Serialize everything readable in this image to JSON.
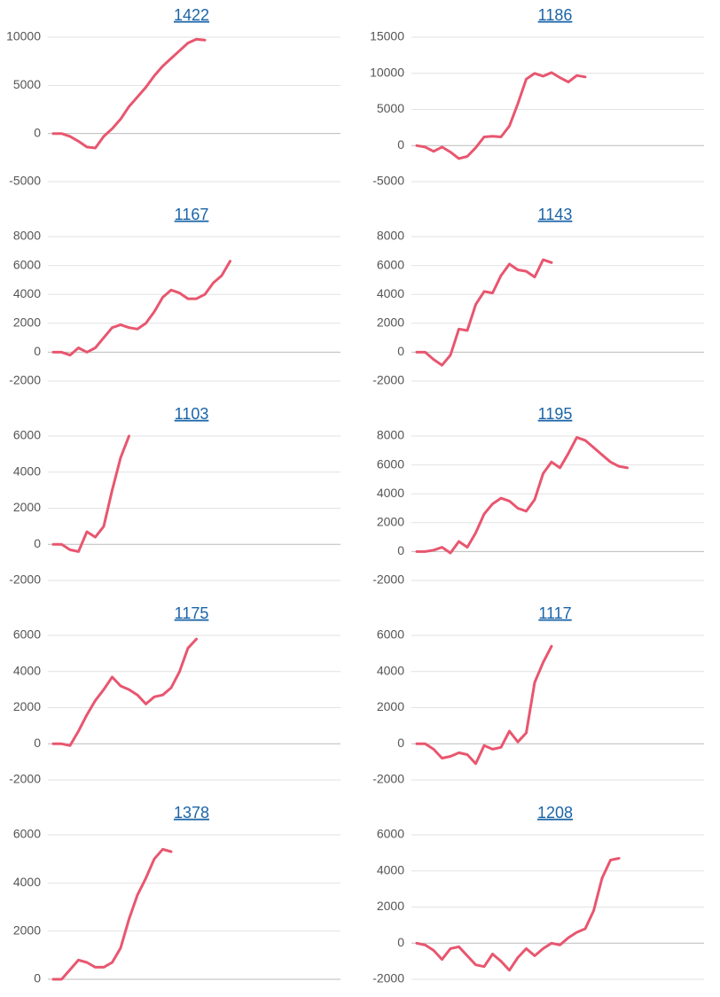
{
  "chart_data": [
    {
      "type": "line",
      "title": "1422",
      "color": "#e8566f",
      "values": [
        0,
        0,
        -300,
        -800,
        -1400,
        -1500,
        -300,
        500,
        1500,
        2800,
        3800,
        4800,
        6000,
        7000,
        7800,
        8600,
        9400,
        9800,
        9700
      ],
      "ylim": [
        -5000,
        10000
      ],
      "yticks": [
        -5000,
        0,
        5000,
        10000
      ],
      "grid": true
    },
    {
      "type": "line",
      "title": "1186",
      "color": "#e8566f",
      "values": [
        0,
        -200,
        -800,
        -200,
        -900,
        -1800,
        -1500,
        -300,
        1200,
        1300,
        1200,
        2700,
        5800,
        9200,
        10000,
        9600,
        10100,
        9400,
        8800,
        9700,
        9500
      ],
      "ylim": [
        -5000,
        15000
      ],
      "yticks": [
        -5000,
        0,
        5000,
        10000,
        15000
      ],
      "grid": true
    },
    {
      "type": "line",
      "title": "1167",
      "color": "#e8566f",
      "values": [
        0,
        0,
        -200,
        300,
        0,
        300,
        1000,
        1700,
        1900,
        1700,
        1600,
        2000,
        2800,
        3800,
        4300,
        4100,
        3700,
        3700,
        4000,
        4800,
        5300,
        6300
      ],
      "ylim": [
        -2000,
        8000
      ],
      "yticks": [
        -2000,
        0,
        2000,
        4000,
        6000,
        8000
      ],
      "grid": true
    },
    {
      "type": "line",
      "title": "1143",
      "color": "#e8566f",
      "values": [
        0,
        0,
        -500,
        -900,
        -200,
        1600,
        1500,
        3300,
        4200,
        4100,
        5300,
        6100,
        5700,
        5600,
        5200,
        6400,
        6200
      ],
      "ylim": [
        -2000,
        8000
      ],
      "yticks": [
        -2000,
        0,
        2000,
        4000,
        6000,
        8000
      ],
      "grid": true
    },
    {
      "type": "line",
      "title": "1103",
      "color": "#e8566f",
      "values": [
        0,
        0,
        -300,
        -400,
        700,
        400,
        1000,
        3000,
        4800,
        6000
      ],
      "ylim": [
        -2000,
        6000
      ],
      "yticks": [
        -2000,
        0,
        2000,
        4000,
        6000
      ],
      "grid": true
    },
    {
      "type": "line",
      "title": "1195",
      "color": "#e8566f",
      "values": [
        0,
        0,
        100,
        300,
        -100,
        700,
        300,
        1300,
        2600,
        3300,
        3700,
        3500,
        3000,
        2800,
        3600,
        5400,
        6200,
        5800,
        6800,
        7900,
        7700,
        7200,
        6700,
        6200,
        5900,
        5800
      ],
      "ylim": [
        -2000,
        8000
      ],
      "yticks": [
        -2000,
        0,
        2000,
        4000,
        6000,
        8000
      ],
      "grid": true
    },
    {
      "type": "line",
      "title": "1175",
      "color": "#e8566f",
      "values": [
        0,
        0,
        -100,
        700,
        1600,
        2400,
        3000,
        3700,
        3200,
        3000,
        2700,
        2200,
        2600,
        2700,
        3100,
        4000,
        5300,
        5800
      ],
      "ylim": [
        -2000,
        6000
      ],
      "yticks": [
        -2000,
        0,
        2000,
        4000,
        6000
      ],
      "grid": true
    },
    {
      "type": "line",
      "title": "1117",
      "color": "#e8566f",
      "values": [
        0,
        0,
        -300,
        -800,
        -700,
        -500,
        -600,
        -1100,
        -100,
        -300,
        -200,
        700,
        100,
        600,
        3400,
        4500,
        5400
      ],
      "ylim": [
        -2000,
        6000
      ],
      "yticks": [
        -2000,
        0,
        2000,
        4000,
        6000
      ],
      "grid": true
    },
    {
      "type": "line",
      "title": "1378",
      "color": "#e8566f",
      "values": [
        0,
        0,
        400,
        800,
        700,
        500,
        500,
        700,
        1300,
        2500,
        3500,
        4200,
        5000,
        5400,
        5300
      ],
      "ylim": [
        0,
        6000
      ],
      "yticks": [
        0,
        2000,
        4000,
        6000
      ],
      "grid": true
    },
    {
      "type": "line",
      "title": "1208",
      "color": "#e8566f",
      "values": [
        0,
        -100,
        -400,
        -900,
        -300,
        -200,
        -700,
        -1200,
        -1300,
        -600,
        -1000,
        -1500,
        -800,
        -300,
        -700,
        -300,
        0,
        -100,
        300,
        600,
        800,
        1800,
        3600,
        4600,
        4700
      ],
      "ylim": [
        -2000,
        6000
      ],
      "yticks": [
        -2000,
        0,
        2000,
        4000,
        6000
      ],
      "grid": true
    }
  ]
}
